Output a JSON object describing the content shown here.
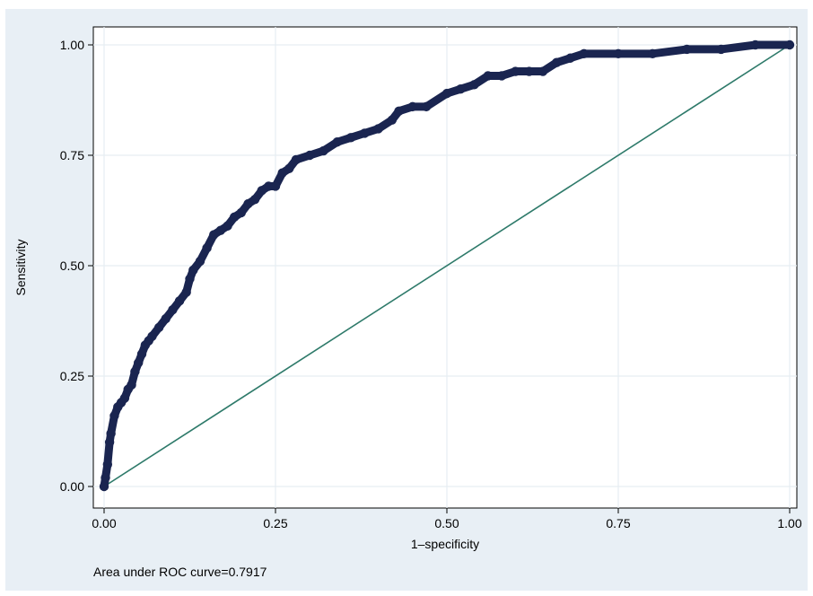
{
  "chart_data": {
    "type": "line",
    "title": "",
    "xlabel": "1–specificity",
    "ylabel": "Sensitivity",
    "xlim": [
      0,
      1
    ],
    "ylim": [
      0,
      1
    ],
    "x_ticks": [
      "0.00",
      "0.25",
      "0.50",
      "0.75",
      "1.00"
    ],
    "y_ticks": [
      "0.00",
      "0.25",
      "0.50",
      "0.75",
      "1.00"
    ],
    "grid": true,
    "note": "Area under ROC curve=0.7917",
    "colors": {
      "background": "#e8eff5",
      "plot_area": "#ffffff",
      "grid": "#e6edf2",
      "roc_curve": "#1a2550",
      "reference_line": "#2e7a6a"
    },
    "series": [
      {
        "x": [
          0.0,
          0.002,
          0.005,
          0.008,
          0.01,
          0.015,
          0.02,
          0.025,
          0.03,
          0.035,
          0.04,
          0.045,
          0.05,
          0.055,
          0.06,
          0.065,
          0.07,
          0.08,
          0.09,
          0.1,
          0.11,
          0.12,
          0.125,
          0.13,
          0.14,
          0.15,
          0.16,
          0.17,
          0.18,
          0.19,
          0.2,
          0.21,
          0.22,
          0.23,
          0.24,
          0.25,
          0.26,
          0.27,
          0.28,
          0.3,
          0.32,
          0.34,
          0.36,
          0.38,
          0.4,
          0.42,
          0.43,
          0.45,
          0.47,
          0.5,
          0.52,
          0.54,
          0.56,
          0.58,
          0.6,
          0.62,
          0.64,
          0.66,
          0.68,
          0.7,
          0.75,
          0.8,
          0.85,
          0.9,
          0.95,
          1.0
        ],
        "y": [
          0.0,
          0.02,
          0.05,
          0.1,
          0.12,
          0.16,
          0.18,
          0.19,
          0.2,
          0.22,
          0.23,
          0.26,
          0.28,
          0.3,
          0.32,
          0.33,
          0.34,
          0.36,
          0.38,
          0.4,
          0.42,
          0.44,
          0.47,
          0.49,
          0.51,
          0.54,
          0.57,
          0.58,
          0.59,
          0.61,
          0.62,
          0.64,
          0.65,
          0.67,
          0.68,
          0.68,
          0.71,
          0.72,
          0.74,
          0.75,
          0.76,
          0.78,
          0.79,
          0.8,
          0.81,
          0.83,
          0.85,
          0.86,
          0.86,
          0.89,
          0.9,
          0.91,
          0.93,
          0.93,
          0.94,
          0.94,
          0.94,
          0.96,
          0.97,
          0.98,
          0.98,
          0.98,
          0.99,
          0.99,
          1.0,
          1.0
        ]
      },
      {
        "x": [
          0,
          1
        ],
        "y": [
          0,
          1
        ]
      }
    ]
  }
}
